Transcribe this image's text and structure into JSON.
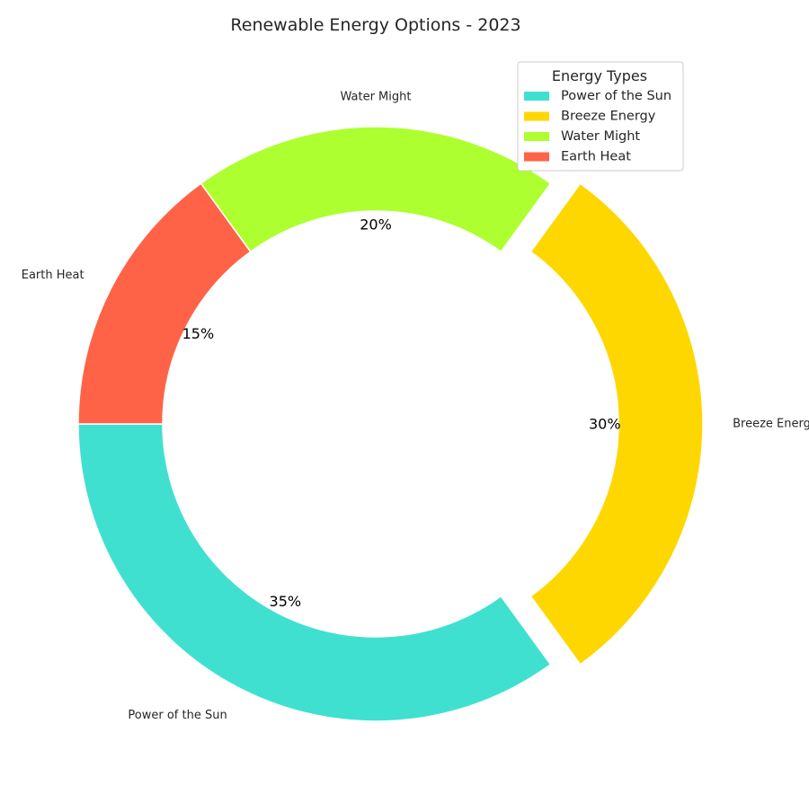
{
  "chart_data": {
    "type": "pie",
    "style": "donut",
    "title": "Renewable Energy Options - 2023",
    "categories": [
      "Power of the Sun",
      "Breeze Energy",
      "Water Might",
      "Earth Heat"
    ],
    "values": [
      35,
      30,
      20,
      15
    ],
    "value_labels": [
      "35%",
      "30%",
      "20%",
      "15%"
    ],
    "colors": [
      "#40E0D0",
      "#FFD700",
      "#ADFF2F",
      "#FF6347"
    ],
    "exploded": [
      "Breeze Energy"
    ],
    "start_angle_deg": 180,
    "direction": "counterclockwise",
    "legend": {
      "title": "Energy Types",
      "placement": "top-right",
      "entries": [
        "Power of the Sun",
        "Breeze Energy",
        "Water Might",
        "Earth Heat"
      ]
    }
  }
}
